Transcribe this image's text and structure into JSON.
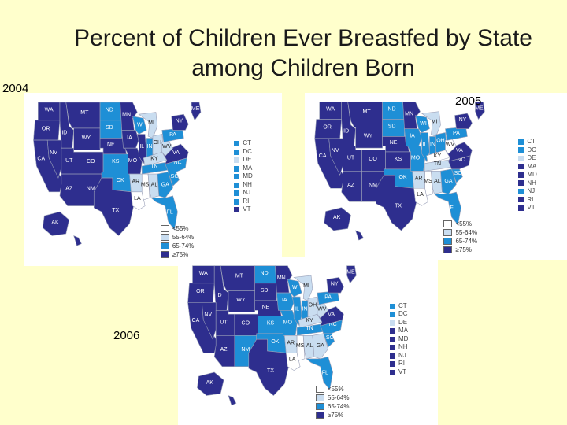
{
  "title_line1": "Percent of Children Ever Breastfed by State",
  "title_line2": "among Children Born",
  "colors": {
    "background": "#FFFFCC",
    "lt55": "#FFFFFF",
    "p55_64": "#C9DDF0",
    "p65_74": "#1E8FD6",
    "ge75": "#2E2E8E"
  },
  "legend": [
    "<55%",
    "55-64%",
    "65-74%",
    "≥75%"
  ],
  "small_states": [
    "CT",
    "DC",
    "DE",
    "MA",
    "MD",
    "NH",
    "NJ",
    "RI",
    "VT"
  ],
  "maps": [
    {
      "year": "2004",
      "states": {
        "WA": "ge75",
        "OR": "ge75",
        "ID": "ge75",
        "MT": "ge75",
        "WY": "ge75",
        "CA": "ge75",
        "NV": "ge75",
        "UT": "ge75",
        "CO": "ge75",
        "AZ": "ge75",
        "NM": "ge75",
        "ND": "p65_74",
        "SD": "p65_74",
        "NE": "ge75",
        "KS": "p65_74",
        "OK": "p65_74",
        "TX": "ge75",
        "MN": "ge75",
        "IA": "ge75",
        "MO": "ge75",
        "AR": "p55_64",
        "LA": "lt55",
        "WI": "p65_74",
        "IL": "ge75",
        "MI": "p55_64",
        "IN": "p65_74",
        "OH": "p55_64",
        "KY": "p55_64",
        "TN": "p65_74",
        "MS": "lt55",
        "AL": "p55_64",
        "GA": "p65_74",
        "FL": "p65_74",
        "SC": "p65_74",
        "NC": "p65_74",
        "VA": "ge75",
        "WV": "p55_64",
        "PA": "p65_74",
        "NY": "ge75",
        "ME": "ge75",
        "AK": "ge75",
        "HI": "ge75"
      },
      "small": [
        "p65_74",
        "p65_74",
        "p55_64",
        "p65_74",
        "p65_74",
        "p65_74",
        "p65_74",
        "p65_74",
        "ge75"
      ]
    },
    {
      "year": "2005",
      "states": {
        "WA": "ge75",
        "OR": "ge75",
        "ID": "ge75",
        "MT": "ge75",
        "WY": "ge75",
        "CA": "ge75",
        "NV": "ge75",
        "UT": "ge75",
        "CO": "ge75",
        "AZ": "ge75",
        "NM": "ge75",
        "ND": "p65_74",
        "SD": "p65_74",
        "NE": "ge75",
        "KS": "ge75",
        "OK": "p65_74",
        "TX": "ge75",
        "MN": "ge75",
        "IA": "p65_74",
        "MO": "p65_74",
        "AR": "p55_64",
        "LA": "lt55",
        "WI": "p65_74",
        "IL": "p65_74",
        "MI": "p55_64",
        "IN": "p65_74",
        "OH": "p65_74",
        "KY": "lt55",
        "TN": "p55_64",
        "MS": "lt55",
        "AL": "p55_64",
        "GA": "p65_74",
        "FL": "p65_74",
        "SC": "p65_74",
        "NC": "ge75",
        "VA": "ge75",
        "WV": "lt55",
        "PA": "p65_74",
        "NY": "ge75",
        "ME": "ge75",
        "AK": "ge75",
        "HI": "ge75"
      },
      "small": [
        "p65_74",
        "p65_74",
        "p55_64",
        "ge75",
        "ge75",
        "ge75",
        "p65_74",
        "ge75",
        "ge75"
      ]
    },
    {
      "year": "2006",
      "states": {
        "WA": "ge75",
        "OR": "ge75",
        "ID": "ge75",
        "MT": "ge75",
        "WY": "ge75",
        "CA": "ge75",
        "NV": "ge75",
        "UT": "ge75",
        "CO": "ge75",
        "AZ": "ge75",
        "NM": "p65_74",
        "ND": "p65_74",
        "SD": "ge75",
        "NE": "ge75",
        "KS": "p65_74",
        "OK": "p65_74",
        "TX": "ge75",
        "MN": "ge75",
        "IA": "p65_74",
        "MO": "p65_74",
        "AR": "p55_64",
        "LA": "lt55",
        "WI": "p65_74",
        "IL": "p65_74",
        "MI": "p55_64",
        "IN": "p65_74",
        "OH": "p55_64",
        "KY": "p55_64",
        "TN": "p65_74",
        "MS": "lt55",
        "AL": "p55_64",
        "GA": "p55_64",
        "FL": "p65_74",
        "SC": "p65_74",
        "NC": "p65_74",
        "VA": "ge75",
        "WV": "p55_64",
        "PA": "p65_74",
        "NY": "ge75",
        "ME": "ge75",
        "AK": "ge75",
        "HI": "ge75"
      },
      "small": [
        "p65_74",
        "p65_74",
        "p55_64",
        "ge75",
        "ge75",
        "ge75",
        "ge75",
        "ge75",
        "ge75"
      ]
    }
  ]
}
